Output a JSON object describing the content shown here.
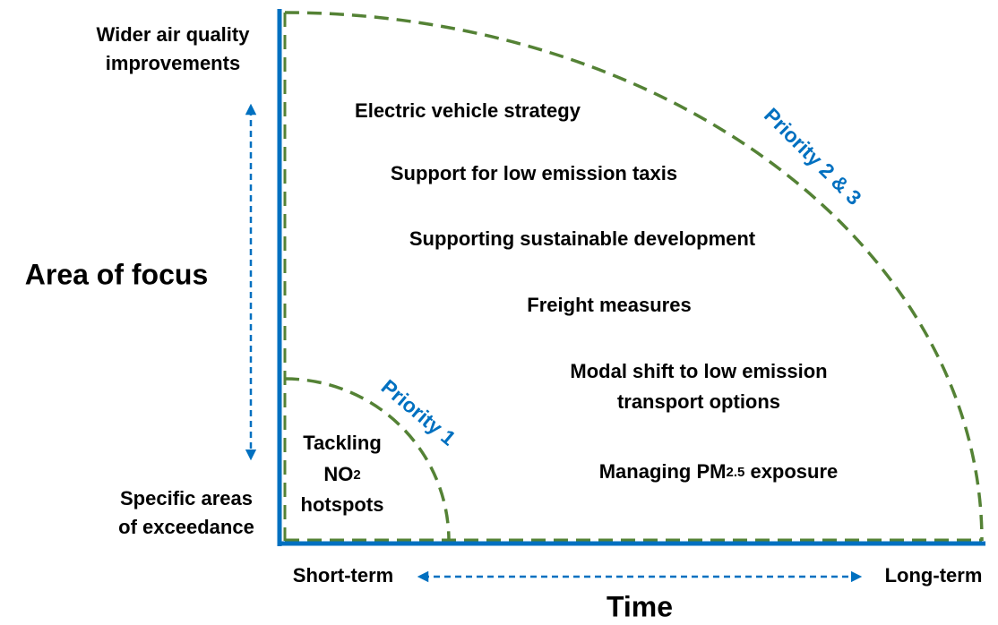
{
  "y_axis": {
    "label": "Area of focus",
    "top": [
      "Wider air quality",
      "improvements"
    ],
    "bottom": [
      "Specific areas",
      "of exceedance"
    ]
  },
  "x_axis": {
    "label": "Time",
    "start": "Short-term",
    "end": "Long-term"
  },
  "zones": [
    {
      "label": "Priority 1",
      "items": [
        [
          "Tackling"
        ],
        [
          "NO",
          "2"
        ],
        [
          "hotspots"
        ]
      ]
    },
    {
      "label": "Priority 2 & 3",
      "items": [
        [
          "Electric vehicle strategy"
        ],
        [
          "Support for low emission taxis"
        ],
        [
          "Supporting sustainable development"
        ],
        [
          "Freight measures"
        ],
        [
          "Modal shift to low emission"
        ],
        [
          "transport options"
        ],
        [
          "Managing PM",
          "2.5",
          " exposure"
        ]
      ]
    }
  ]
}
